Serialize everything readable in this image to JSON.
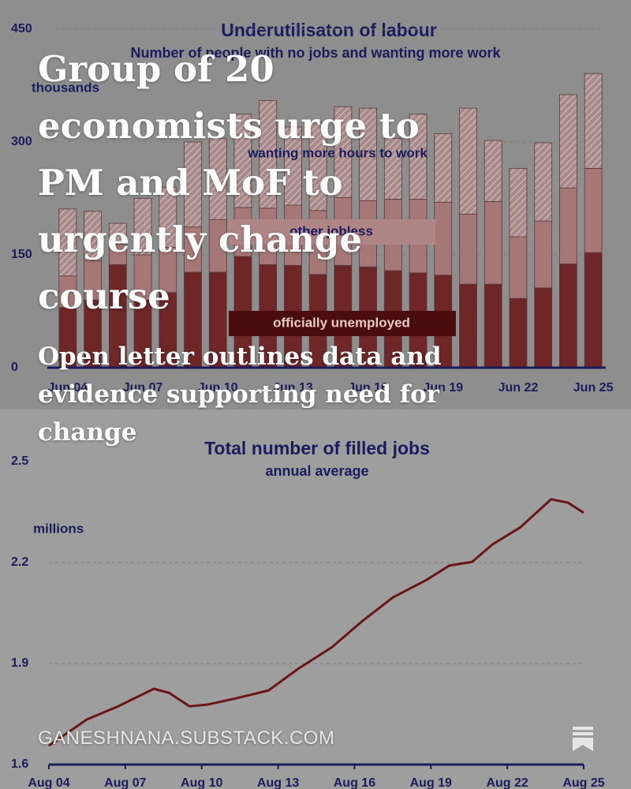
{
  "post": {
    "title": "Group of 20 economists urge to PM and MoF to urgently change course",
    "subtitle": "Open letter outlines data and evidence supporting need for change",
    "site": "GANESHNANA.SUBSTACK.COM"
  },
  "chart_data": [
    {
      "type": "bar",
      "stacked": true,
      "title": "Underutilisaton of labour",
      "subtitle": "Number of people with no jobs and wanting more work",
      "y_label": "thousands",
      "categories": [
        "Jun 04",
        null,
        null,
        "Jun 07",
        null,
        null,
        "Jun 10",
        null,
        null,
        "Jun 13",
        null,
        null,
        "Jun 16",
        null,
        null,
        "Jun 19",
        null,
        null,
        "Jun 22",
        null,
        null,
        "Jun 25"
      ],
      "series": [
        {
          "name": "officially unemployed",
          "color": "#6e2626",
          "values": [
            80,
            90,
            137,
            90,
            100,
            127,
            127,
            148,
            137,
            136,
            124,
            136,
            134,
            129,
            126,
            123,
            111,
            111,
            92,
            106,
            138,
            153
          ]
        },
        {
          "name": "other jobless",
          "color": "#a67777",
          "values": [
            42,
            52,
            27,
            60,
            60,
            60,
            70,
            65,
            75,
            80,
            85,
            90,
            88,
            95,
            98,
            97,
            93,
            110,
            82,
            89,
            101,
            112
          ]
        },
        {
          "name": "wanting more hours to work",
          "color": "#b39696",
          "pattern": "hatch",
          "values": [
            89,
            66,
            28,
            75,
            80,
            113,
            108,
            124,
            143,
            104,
            117,
            121,
            123,
            81,
            113,
            91,
            141,
            81,
            91,
            104,
            124,
            126
          ]
        }
      ],
      "ylim": [
        0,
        450
      ],
      "yticks": [
        0,
        150,
        300,
        450
      ]
    },
    {
      "type": "line",
      "title": "Total number of filled jobs",
      "subtitle": "annual average",
      "y_label": "millions",
      "x": [
        2004.58,
        2006.07,
        2007.3,
        2008.7,
        2009.3,
        2010.1,
        2010.8,
        2011.95,
        2013.2,
        2014.4,
        2015.7,
        2016.9,
        2018.1,
        2019.4,
        2020.3,
        2021.2,
        2022.0,
        2023.1,
        2024.3,
        2024.96,
        2025.58
      ],
      "values": [
        1.656,
        1.734,
        1.773,
        1.825,
        1.813,
        1.773,
        1.778,
        1.797,
        1.82,
        1.886,
        1.949,
        2.027,
        2.097,
        2.148,
        2.191,
        2.202,
        2.254,
        2.305,
        2.388,
        2.378,
        2.348
      ],
      "color": "#6b1616",
      "xlim": [
        2004.58,
        2025.58
      ],
      "xticks": [
        {
          "value": 2004.58,
          "label": "Aug 04"
        },
        {
          "value": 2007.58,
          "label": "Aug 07"
        },
        {
          "value": 2010.58,
          "label": "Aug 10"
        },
        {
          "value": 2013.58,
          "label": "Aug 13"
        },
        {
          "value": 2016.58,
          "label": "Aug 16"
        },
        {
          "value": 2019.58,
          "label": "Aug 19"
        },
        {
          "value": 2022.58,
          "label": "Aug 22"
        },
        {
          "value": 2025.58,
          "label": "Aug 25"
        }
      ],
      "ylim": [
        1.6,
        2.5
      ],
      "yticks": [
        1.6,
        1.9,
        2.2,
        2.5
      ],
      "grid": true
    }
  ]
}
